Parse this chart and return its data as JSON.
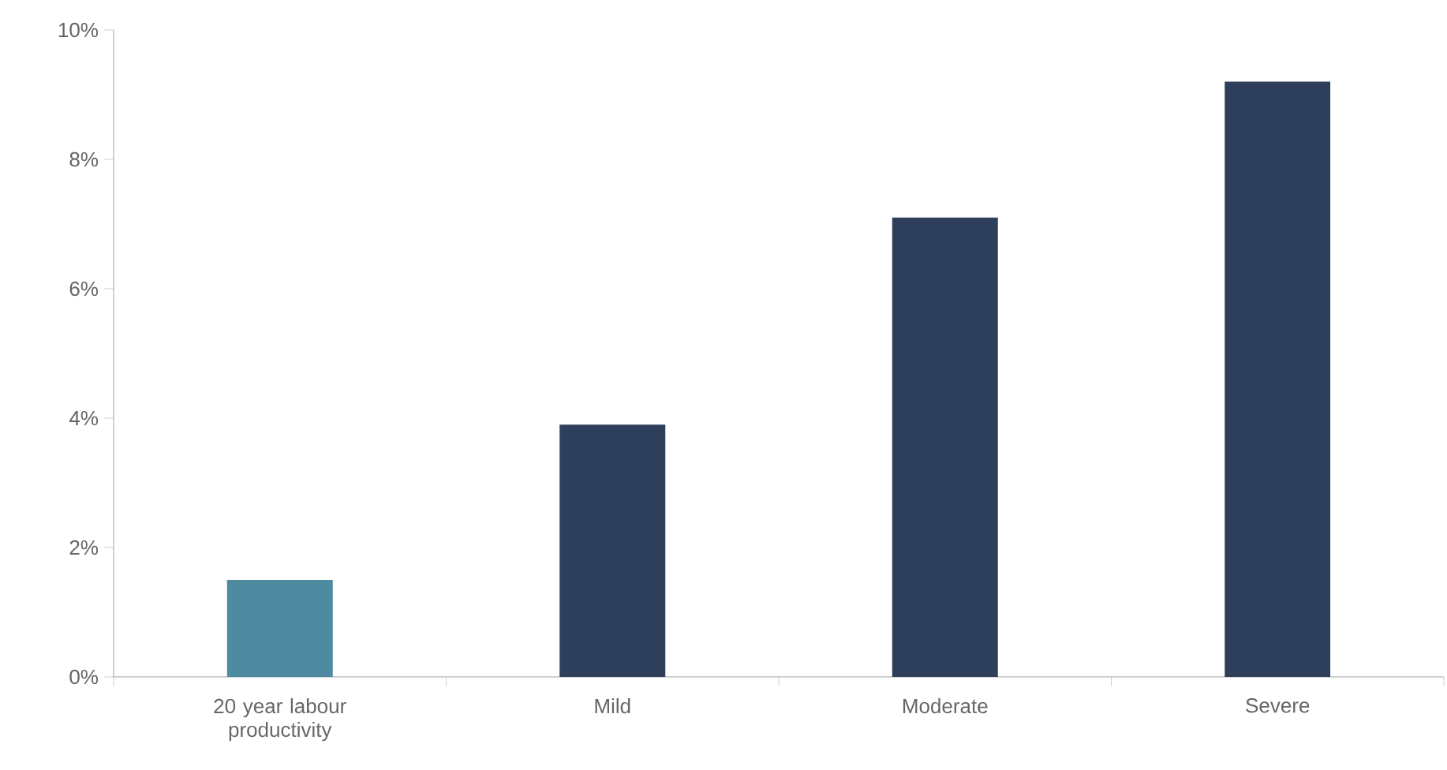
{
  "chart_data": {
    "type": "bar",
    "categories": [
      "20 year labour productivity",
      "Mild",
      "Moderate",
      "Severe"
    ],
    "values": [
      1.5,
      3.9,
      7.1,
      9.2
    ],
    "colors": [
      "#4e8aa0",
      "#2e3f5c",
      "#2e3f5c",
      "#2e3f5c"
    ],
    "ylim": [
      0,
      10
    ],
    "yticks": [
      {
        "value": 0,
        "label": "0%"
      },
      {
        "value": 2,
        "label": "2%"
      },
      {
        "value": 4,
        "label": "4%"
      },
      {
        "value": 6,
        "label": "6%"
      },
      {
        "value": 8,
        "label": "8%"
      },
      {
        "value": 10,
        "label": "10%"
      }
    ],
    "grid": false
  }
}
